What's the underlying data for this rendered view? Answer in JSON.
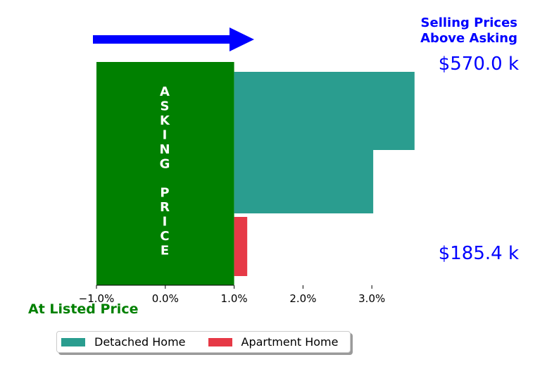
{
  "title_right": [
    "Selling Prices",
    "Above Asking"
  ],
  "bottom_label": "At Listed Price",
  "asking_price_letters": [
    "A",
    "S",
    "K",
    "I",
    "N",
    "G",
    "",
    "P",
    "R",
    "I",
    "C",
    "E"
  ],
  "price_labels": [
    "$570.0 k",
    "$185.4 k"
  ],
  "colors": {
    "asking_block": "#008000",
    "detached": "#2a9d8f",
    "apartment": "#e63946",
    "arrow": "#0000ff",
    "title_text": "#0000ff",
    "bottom_label_text": "#008000"
  },
  "chart_data": {
    "type": "bar",
    "orientation": "horizontal",
    "xlim": [
      -1.0,
      4.0
    ],
    "xticks": [
      -1.0,
      0.0,
      1.0,
      2.0,
      3.0
    ],
    "xtick_labels": [
      "−1.0%",
      "0.0%",
      "1.0%",
      "2.0%",
      "3.0%"
    ],
    "asking_block": {
      "x_start": -1.0,
      "x_end": 1.0
    },
    "series": [
      {
        "name": "Detached Home",
        "color": "#2a9d8f",
        "bars": [
          {
            "start": 1.0,
            "end": 3.62
          },
          {
            "start": 1.0,
            "end": 3.02
          }
        ]
      },
      {
        "name": "Apartment Home",
        "color": "#e63946",
        "bars": [
          {
            "start": 1.0,
            "end": 1.19
          }
        ]
      }
    ]
  },
  "legend": [
    {
      "label": "Detached Home",
      "color": "#2a9d8f"
    },
    {
      "label": "Apartment Home",
      "color": "#e63946"
    }
  ]
}
